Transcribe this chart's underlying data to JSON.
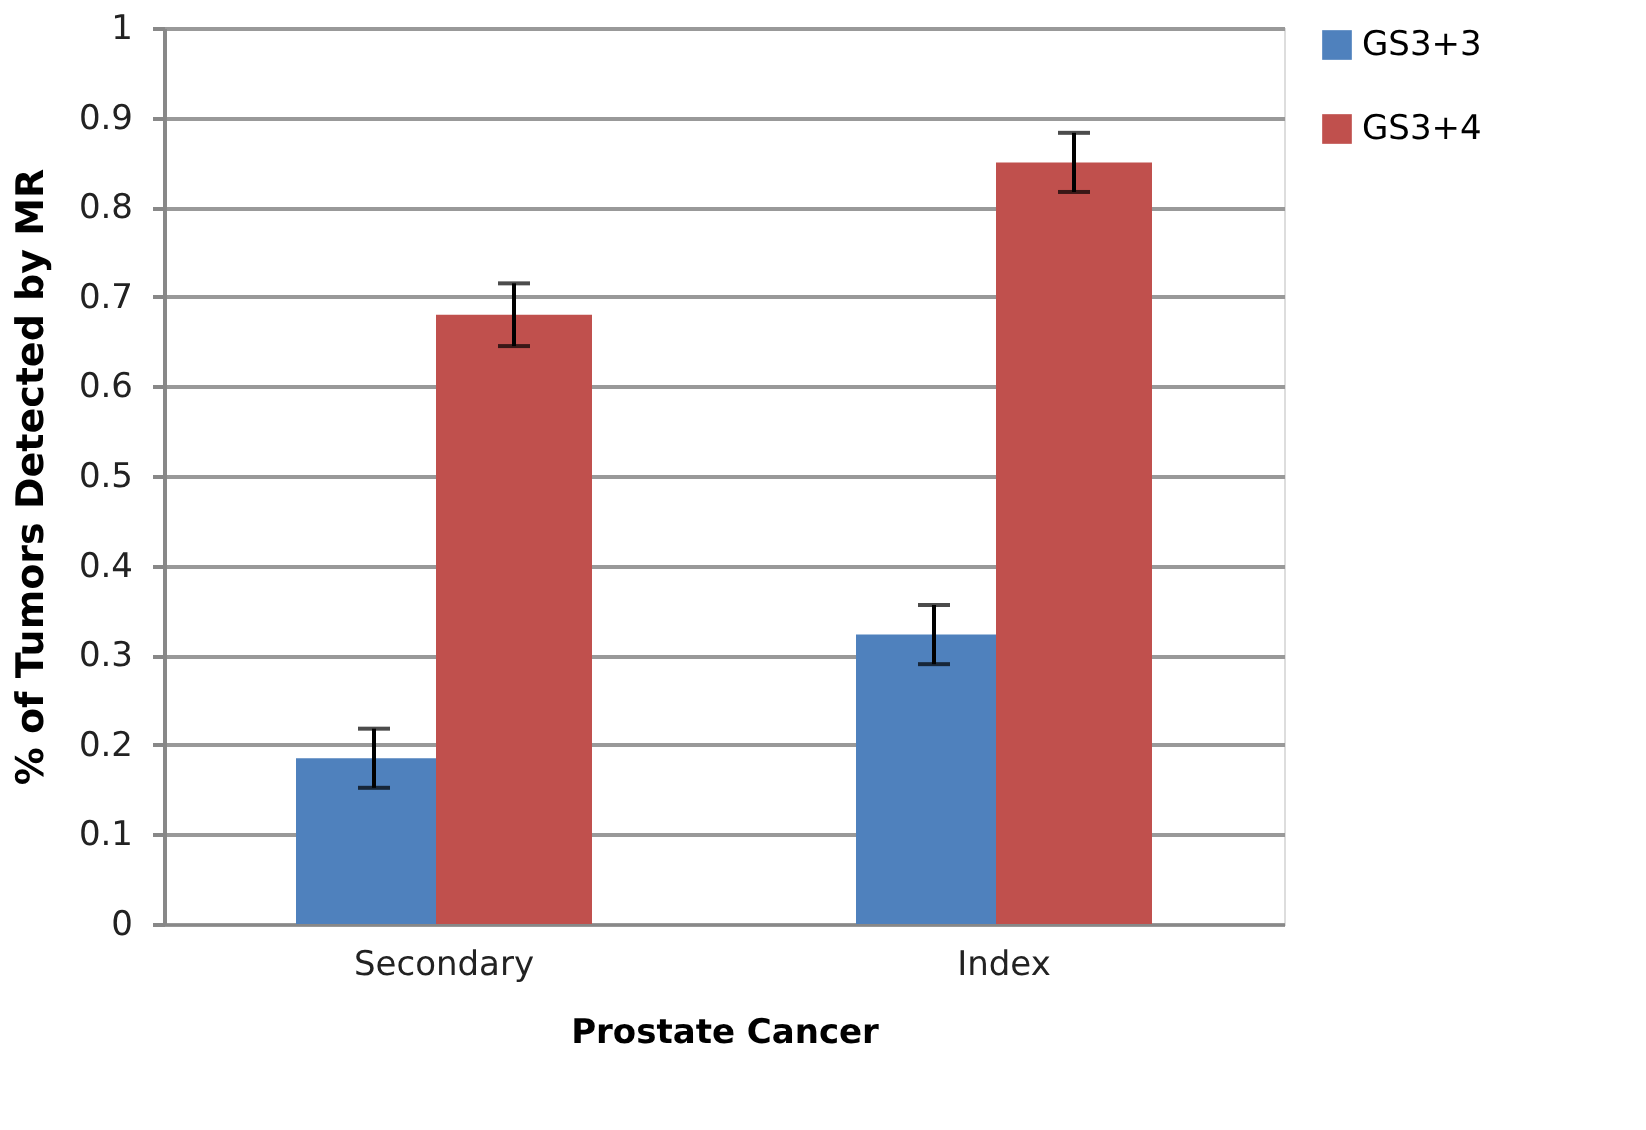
{
  "chart_data": {
    "type": "bar",
    "xlabel": "Prostate Cancer",
    "ylabel": "% of Tumors Detected by MR",
    "categories": [
      "Secondary",
      "Index"
    ],
    "series": [
      {
        "name": "GS3+3",
        "color": "#4f81bd",
        "values": [
          0.185,
          0.323
        ],
        "errors": [
          0.033,
          0.033
        ]
      },
      {
        "name": "GS3+4",
        "color": "#c0504d",
        "values": [
          0.68,
          0.85
        ],
        "errors": [
          0.035,
          0.033
        ]
      }
    ],
    "ylim": [
      0,
      1
    ],
    "yticks": [
      0,
      0.1,
      0.2,
      0.3,
      0.4,
      0.5,
      0.6,
      0.7,
      0.8,
      0.9,
      1
    ],
    "grid": "y",
    "legend": "right"
  }
}
